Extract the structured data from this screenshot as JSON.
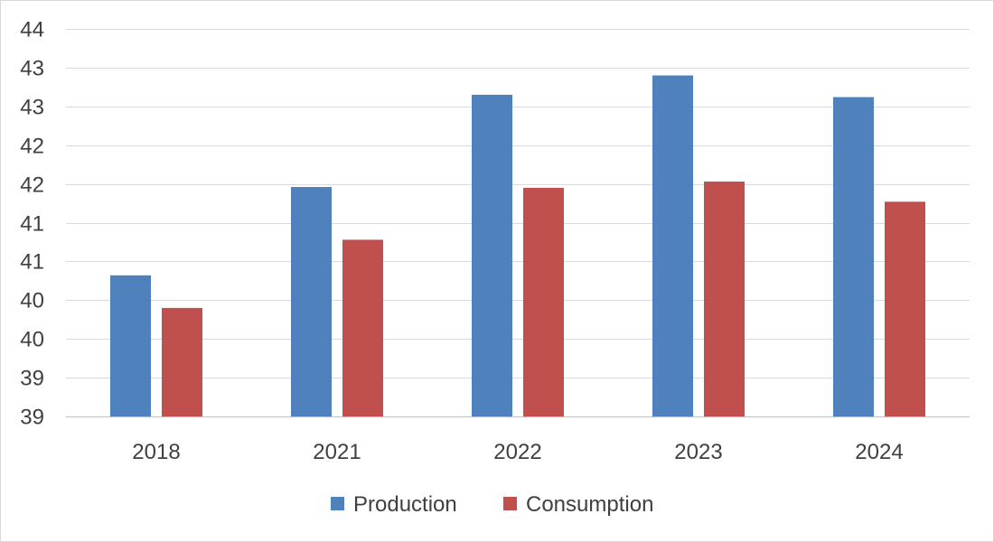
{
  "chart_data": {
    "type": "bar",
    "title": "",
    "xlabel": "",
    "ylabel": "",
    "categories": [
      "2018",
      "2021",
      "2022",
      "2023",
      "2024"
    ],
    "series": [
      {
        "name": "Production",
        "color": "#4F81BD",
        "values": [
          40.52,
          41.66,
          42.85,
          43.1,
          42.82
        ]
      },
      {
        "name": "Consumption",
        "color": "#C0504D",
        "values": [
          40.1,
          40.98,
          41.65,
          41.73,
          41.47
        ]
      }
    ],
    "ylim": [
      38.7,
      43.7
    ],
    "yticks": [
      38.7,
      39.2,
      39.7,
      40.2,
      40.7,
      41.2,
      41.7,
      42.2,
      42.7,
      43.2,
      43.7
    ],
    "ytick_labels": [
      "39",
      "39",
      "40",
      "40",
      "41",
      "41",
      "42",
      "42",
      "43",
      "43",
      "44"
    ],
    "grid": true,
    "legend": {
      "position": "bottom",
      "entries": [
        "Production",
        "Consumption"
      ]
    }
  }
}
